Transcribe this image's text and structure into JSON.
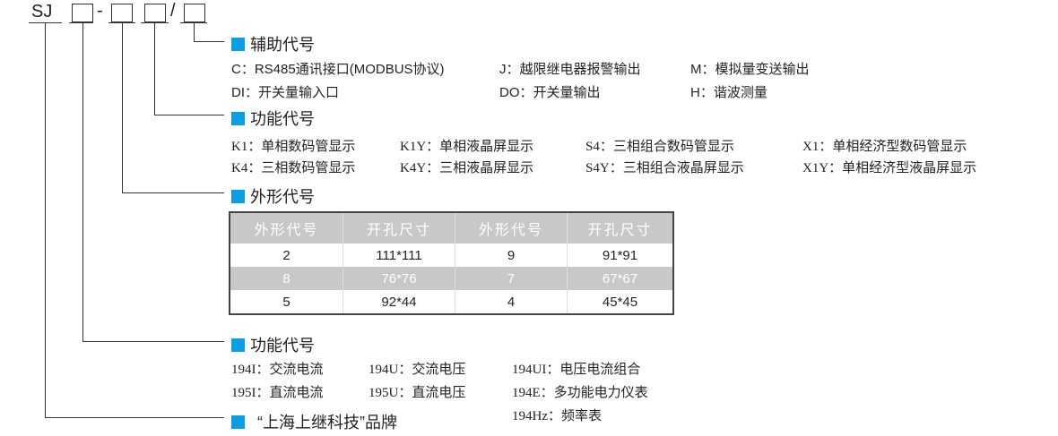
{
  "model": {
    "prefix": "SJ",
    "dash": "-",
    "slash": "/"
  },
  "accent_color": "#0a9fe3",
  "aux": {
    "title": "辅助代号",
    "items": [
      [
        "C：",
        "RS485通讯接口(MODBUS协议)"
      ],
      [
        "J：",
        "越限继电器报警输出"
      ],
      [
        "M：",
        "模拟量变送输出"
      ],
      [
        "DI：",
        "开关量输入口"
      ],
      [
        "DO：",
        "开关量输出"
      ],
      [
        "H：",
        "谐波测量"
      ]
    ]
  },
  "display": {
    "title": "功能代号",
    "items": [
      [
        "K1",
        "：单相数码管显示"
      ],
      [
        "K1Y",
        "：单相液晶屏显示"
      ],
      [
        "S4",
        "：三相组合数码管显示"
      ],
      [
        "X1",
        "：单相经济型数码管显示"
      ],
      [
        "K4",
        "：三相数码管显示"
      ],
      [
        "K4Y",
        "：三相液晶屏显示"
      ],
      [
        "S4Y",
        "：三相组合液晶屏显示"
      ],
      [
        "X1Y",
        "：单相经济型液晶屏显示"
      ]
    ]
  },
  "shape": {
    "title": "外形代号",
    "headers": [
      "外形代号",
      "开孔尺寸",
      "外形代号",
      "开孔尺寸"
    ],
    "rows": [
      [
        "2",
        "111*111",
        "9",
        "91*91"
      ],
      [
        "8",
        "76*76",
        "7",
        "67*67"
      ],
      [
        "5",
        "92*44",
        "4",
        "45*45"
      ]
    ]
  },
  "function": {
    "title": "功能代号",
    "items": [
      [
        "194I",
        "：交流电流"
      ],
      [
        "194U",
        "：交流电压"
      ],
      [
        "194UI",
        "：电压电流组合"
      ],
      [
        "195I",
        "：直流电流"
      ],
      [
        "195U",
        "：直流电压"
      ],
      [
        "194E",
        "：多功能电力仪表"
      ],
      [
        "194Hz",
        "：频率表"
      ]
    ]
  },
  "brand": {
    "title": "“上海上继科技”品牌"
  }
}
